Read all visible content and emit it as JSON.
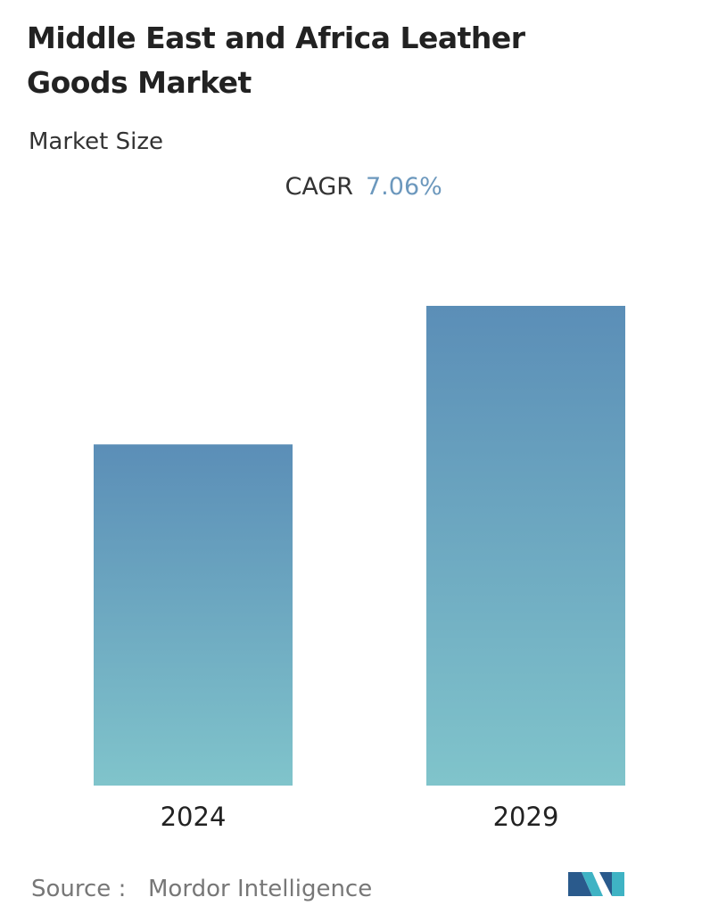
{
  "chart_data": {
    "type": "bar",
    "title": "Middle East and Africa Leather Goods Market",
    "subtitle": "Market Size",
    "cagr_label": "CAGR",
    "cagr_value": "7.06%",
    "categories": [
      "2024",
      "2029"
    ],
    "values": [
      100,
      140.6
    ],
    "colors": [
      "#5b8eb7",
      "#80c4cb"
    ],
    "source_label": "Source :",
    "source": "Mordor Intelligence"
  }
}
